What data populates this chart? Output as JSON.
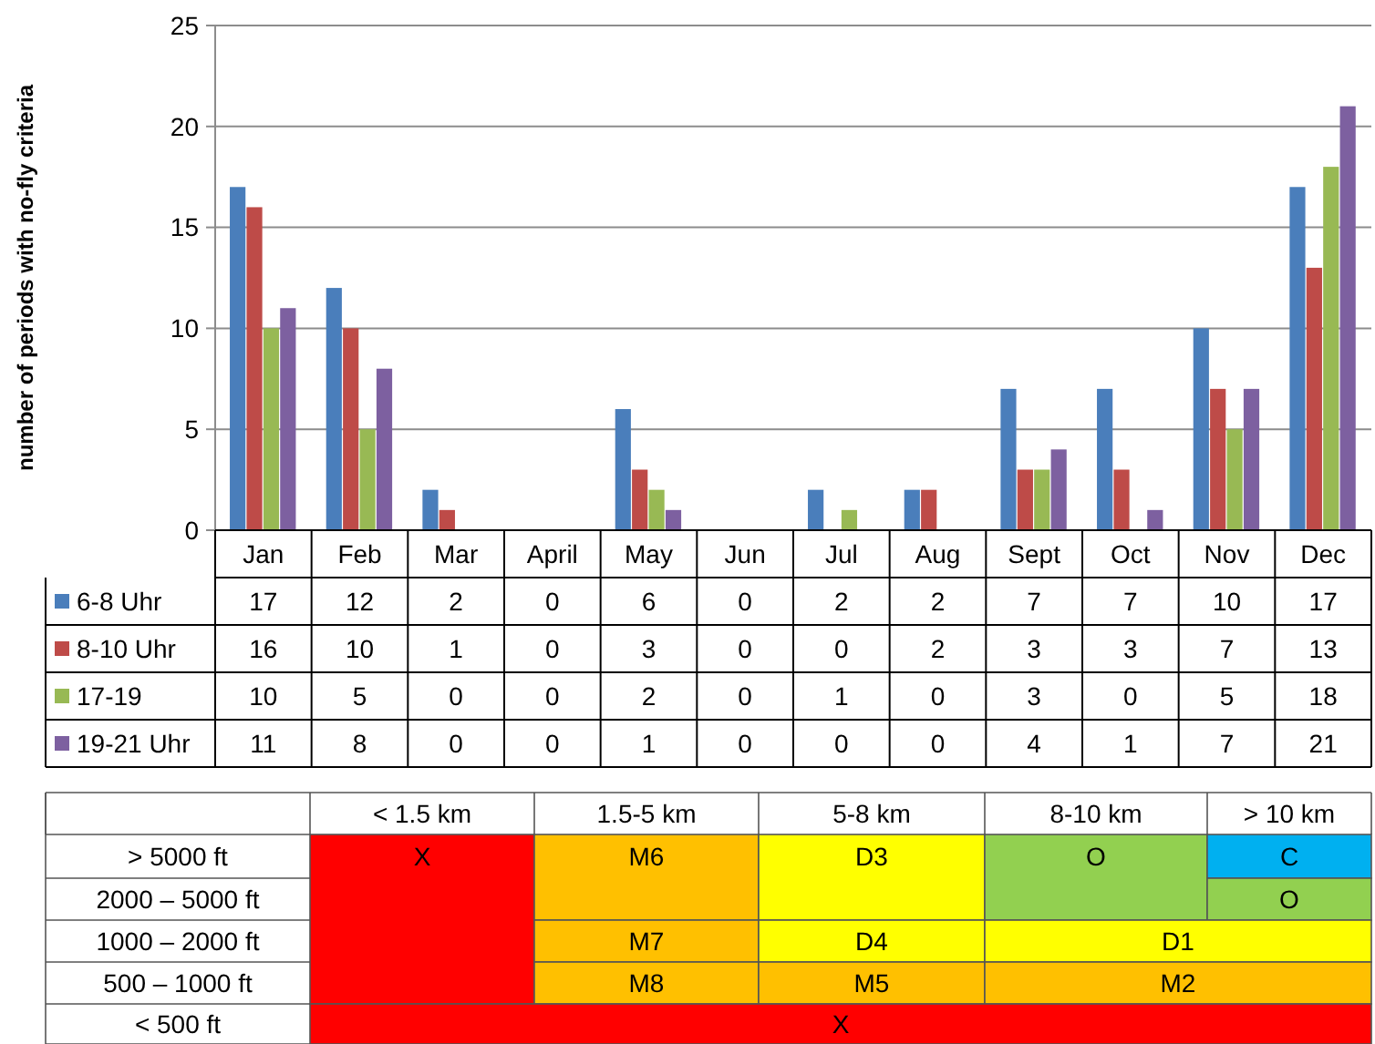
{
  "chart_data": [
    {
      "type": "bar",
      "ylabel": "number of periods with no-fly criteria",
      "categories": [
        "Jan",
        "Feb",
        "Mar",
        "April",
        "May",
        "Jun",
        "Jul",
        "Aug",
        "Sept",
        "Oct",
        "Nov",
        "Dec"
      ],
      "series": [
        {
          "name": "6-8 Uhr",
          "color": "#4a7ebb",
          "values": [
            17,
            12,
            2,
            0,
            6,
            0,
            2,
            2,
            7,
            7,
            10,
            17
          ]
        },
        {
          "name": "8-10 Uhr",
          "color": "#be4b48",
          "values": [
            16,
            10,
            1,
            0,
            3,
            0,
            0,
            2,
            3,
            3,
            7,
            13
          ]
        },
        {
          "name": "17-19",
          "color": "#98b954",
          "values": [
            10,
            5,
            0,
            0,
            2,
            0,
            1,
            0,
            3,
            0,
            5,
            18
          ]
        },
        {
          "name": "19-21 Uhr",
          "color": "#7d60a0",
          "values": [
            11,
            8,
            0,
            0,
            1,
            0,
            0,
            0,
            4,
            1,
            7,
            21
          ]
        }
      ],
      "ylim": [
        0,
        25
      ],
      "yticks": [
        0,
        5,
        10,
        15,
        20,
        25
      ],
      "grid": "y",
      "data_labels": true,
      "legend": "left"
    },
    {
      "type": "other",
      "categories": [
        "< 1.5 km",
        "1.5-5 km",
        "5-8 km",
        "8-10 km",
        "> 10 km"
      ],
      "y_categories": [
        "> 5000 ft",
        "2000 – 5000 ft",
        "1000 – 2000 ft",
        "500 – 1000 ft",
        "< 500 ft"
      ],
      "annotations": [
        "X",
        "M6",
        "D3",
        "O",
        "C",
        "O",
        "M7",
        "D4",
        "D1",
        "M8",
        "M5",
        "M2",
        "X"
      ]
    }
  ]
}
